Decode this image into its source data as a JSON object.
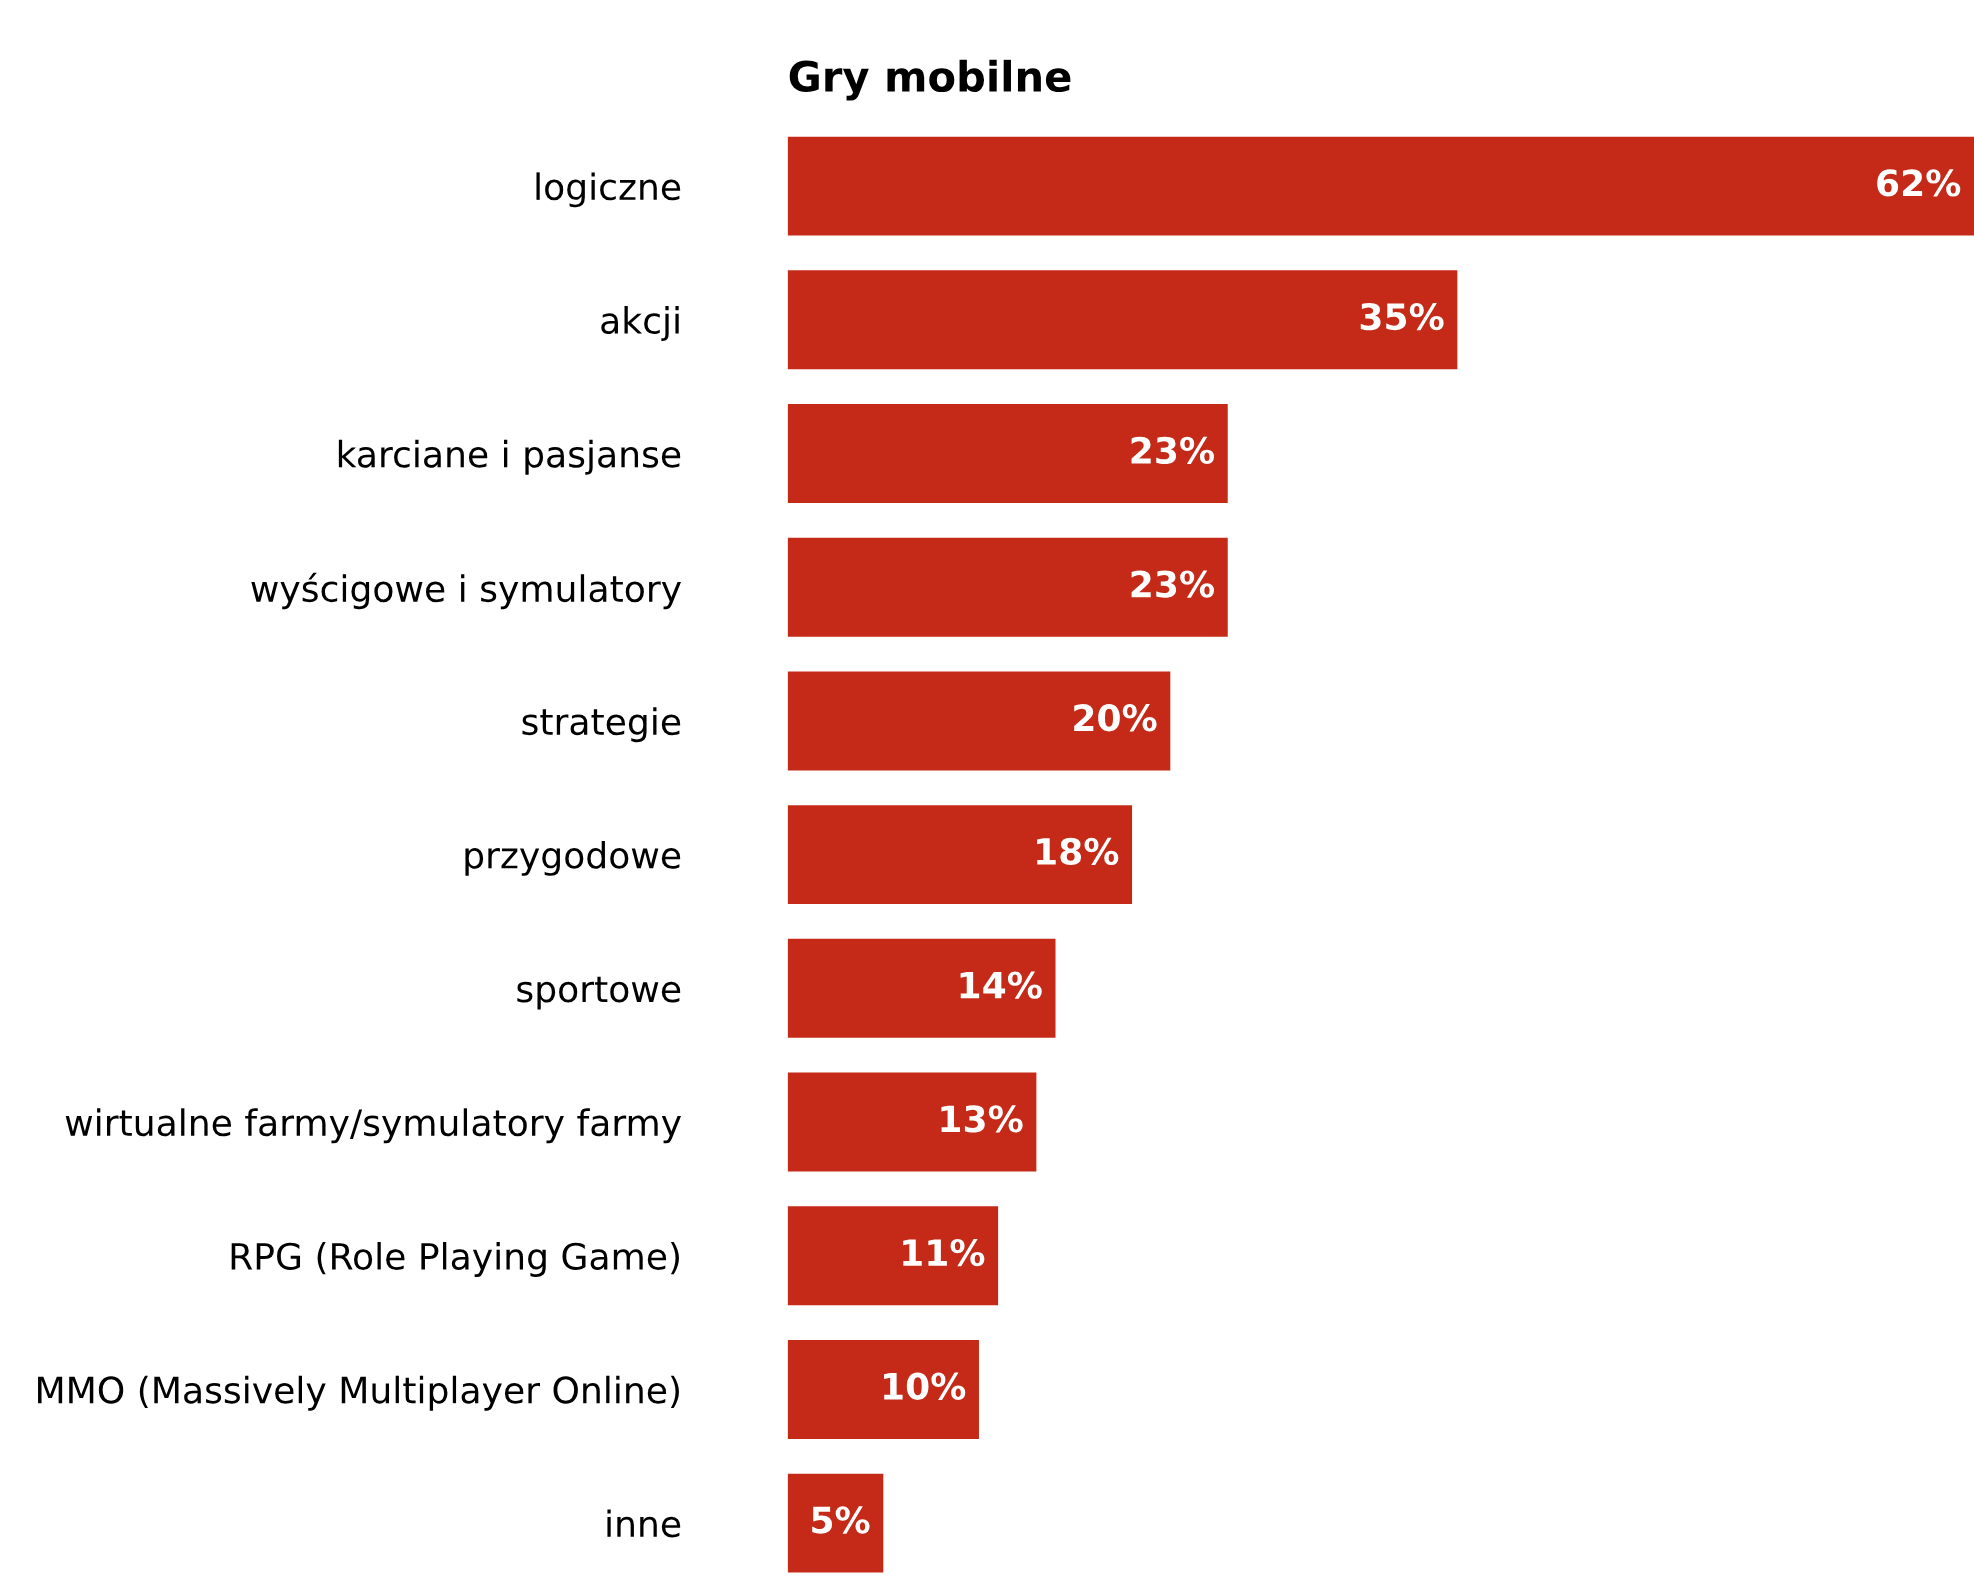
{
  "chart_data": {
    "type": "bar",
    "orientation": "horizontal",
    "title": "Gry mobilne",
    "categories": [
      "logiczne",
      "akcji",
      "karciane i pasjanse",
      "wyścigowe i symulatory",
      "strategie",
      "przygodowe",
      "sportowe",
      "wirtualne farmy/symulatory farmy",
      "RPG (Role Playing Game)",
      "MMO (Massively Multiplayer Online)",
      "inne"
    ],
    "values": [
      62,
      35,
      23,
      23,
      20,
      18,
      14,
      13,
      11,
      10,
      5
    ],
    "value_labels": [
      "62%",
      "35%",
      "23%",
      "23%",
      "20%",
      "18%",
      "14%",
      "13%",
      "11%",
      "10%",
      "5%"
    ],
    "color": "#c42a17",
    "grid": false,
    "legend": false
  }
}
